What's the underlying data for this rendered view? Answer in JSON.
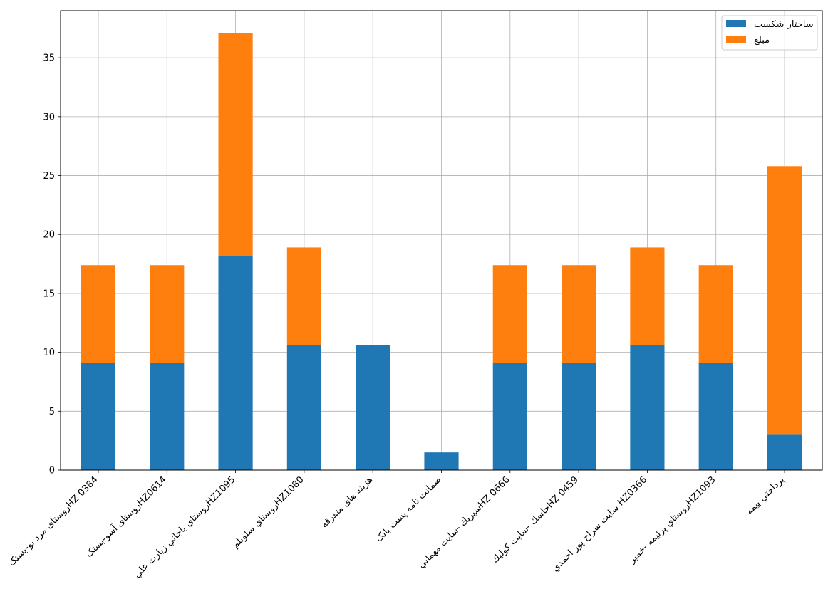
{
  "chart_data": {
    "type": "bar",
    "stacked": true,
    "title": "",
    "xlabel": "",
    "ylabel": "",
    "ylim": [
      0,
      39
    ],
    "yticks": [
      0,
      5,
      10,
      15,
      20,
      25,
      30,
      35
    ],
    "grid": true,
    "legend_position": "top-right",
    "categories": [
      "روستای مرد نو-بستکHZ 0384",
      "روستای آسو-بستکHZ0614",
      "روستاي باجاني زيارت عليHZ1095",
      "روستاي سلوبلمHZ1080",
      "هزینه های متفرقه",
      "ضمانت نامه پست بانک",
      "سيريك -سايت مهمانيHZ 0666",
      "جاسك -سايت كوليكHZ 0459",
      "سايت سراح پور احمدي HZ0366",
      "روستاي پرئيمه -خميرHZ1093",
      "پرداختي بيمه"
    ],
    "series": [
      {
        "name": "ساختار شکست",
        "color": "#1f77b4",
        "values": [
          9.1,
          9.1,
          18.2,
          10.6,
          10.6,
          1.5,
          9.1,
          9.1,
          10.6,
          9.1,
          3.0
        ]
      },
      {
        "name": "مبلغ",
        "color": "#ff7f0e",
        "values": [
          8.3,
          8.3,
          18.9,
          8.3,
          0,
          0,
          8.3,
          8.3,
          8.3,
          8.3,
          22.8
        ]
      }
    ]
  }
}
